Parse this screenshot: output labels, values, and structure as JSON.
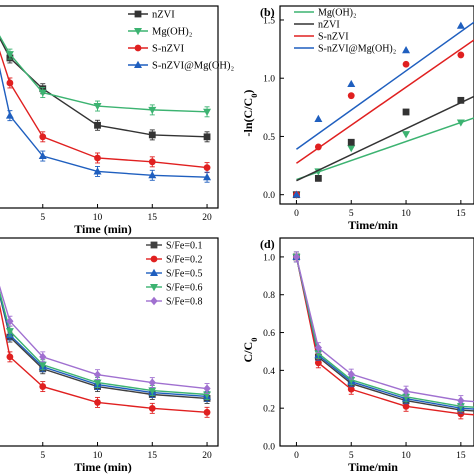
{
  "chart_data": [
    {
      "panel": "a",
      "panel_label": "",
      "type": "line",
      "x": [
        0,
        2,
        5,
        10,
        15,
        20
      ],
      "xticks": [
        "5",
        "10",
        "15",
        "20"
      ],
      "xlabel": "Time (min)",
      "ylabel": "",
      "xlim": [
        0,
        21
      ],
      "ylim": [
        0,
        1.05
      ],
      "yticks": [],
      "legend": "top-right",
      "series": [
        {
          "name": "nZVI",
          "color": "#333333",
          "marker": "square",
          "values": [
            1.0,
            0.78,
            0.62,
            0.43,
            0.38,
            0.37
          ]
        },
        {
          "name": "Mg(OH)₂",
          "color": "#3cb371",
          "marker": "triangle-down",
          "values": [
            1.0,
            0.8,
            0.6,
            0.53,
            0.51,
            0.5
          ]
        },
        {
          "name": "S-nZVI",
          "color": "#e02020",
          "marker": "circle",
          "values": [
            1.0,
            0.65,
            0.37,
            0.26,
            0.24,
            0.21
          ]
        },
        {
          "name": "S-nZVI@Mg(OH)₂",
          "color": "#1f5fbf",
          "marker": "triangle-up",
          "values": [
            1.0,
            0.48,
            0.27,
            0.19,
            0.17,
            0.16
          ]
        }
      ]
    },
    {
      "panel": "b",
      "panel_label": "(b)",
      "type": "scatter",
      "x": [
        0,
        2,
        5,
        10,
        15
      ],
      "xticks": [
        "0",
        "5",
        "10",
        "15"
      ],
      "yticks": [
        "0.0",
        "0.5",
        "1.0",
        "1.5"
      ],
      "xlabel": "Time/min",
      "ylabel": "-ln(C/C0)",
      "xlim": [
        -1.5,
        16.2
      ],
      "ylim": [
        -0.08,
        1.62
      ],
      "legend": "top-left",
      "series": [
        {
          "name": "Mg(OH)₂",
          "color": "#3cb371",
          "marker": "triangle-down",
          "values": [
            0.0,
            0.2,
            0.4,
            0.52,
            0.62
          ],
          "fit": [
            0.13,
            0.62
          ]
        },
        {
          "name": "nZVI",
          "color": "#333333",
          "marker": "square",
          "values": [
            0.0,
            0.14,
            0.45,
            0.71,
            0.81
          ],
          "fit": [
            0.12,
            0.79
          ]
        },
        {
          "name": "S-nZVI",
          "color": "#e02020",
          "marker": "circle",
          "values": [
            0.0,
            0.41,
            0.85,
            1.12,
            1.2
          ],
          "fit": [
            0.27,
            1.25
          ]
        },
        {
          "name": "S-nZVI@Mg(OH)₂",
          "color": "#1f5fbf",
          "marker": "triangle-up",
          "values": [
            0.0,
            0.65,
            0.95,
            1.24,
            1.45
          ],
          "fit": [
            0.39,
            1.4
          ]
        }
      ]
    },
    {
      "panel": "c",
      "panel_label": "",
      "type": "line",
      "x": [
        0,
        2,
        5,
        10,
        15,
        20
      ],
      "xticks": [
        "5",
        "10",
        "15",
        "20"
      ],
      "xlabel": "Time (min)",
      "ylabel": "",
      "xlim": [
        0,
        21
      ],
      "ylim": [
        0,
        1.05
      ],
      "yticks": [],
      "legend": "top-right",
      "series": [
        {
          "name": "S/Fe=0.1",
          "color": "#404040",
          "marker": "square",
          "values": [
            1.0,
            0.55,
            0.39,
            0.3,
            0.26,
            0.24
          ]
        },
        {
          "name": "S/Fe=0.2",
          "color": "#e02020",
          "marker": "circle",
          "values": [
            1.0,
            0.45,
            0.3,
            0.22,
            0.19,
            0.17
          ]
        },
        {
          "name": "S/Fe=0.5",
          "color": "#1f5fbf",
          "marker": "triangle-up",
          "values": [
            1.0,
            0.56,
            0.4,
            0.31,
            0.27,
            0.25
          ]
        },
        {
          "name": "S/Fe=0.6",
          "color": "#3cb371",
          "marker": "triangle-down",
          "values": [
            1.0,
            0.58,
            0.41,
            0.32,
            0.28,
            0.26
          ]
        },
        {
          "name": "S/Fe=0.8",
          "color": "#a070d0",
          "marker": "diamond",
          "values": [
            1.0,
            0.63,
            0.45,
            0.36,
            0.32,
            0.29
          ]
        }
      ]
    },
    {
      "panel": "d",
      "panel_label": "(d)",
      "type": "line",
      "x": [
        0,
        2,
        5,
        10,
        15,
        20
      ],
      "xticks": [
        "0",
        "5",
        "10",
        "15"
      ],
      "yticks": [
        "0.0",
        "0.2",
        "0.4",
        "0.6",
        "0.8",
        "1.0"
      ],
      "xlabel": "Time/min",
      "ylabel": "C/C0",
      "xlim": [
        -1.5,
        16.2
      ],
      "ylim": [
        0,
        1.1
      ],
      "legend": "none",
      "series": [
        {
          "color": "#404040",
          "marker": "square",
          "values": [
            1.0,
            0.47,
            0.33,
            0.24,
            0.19,
            0.17
          ]
        },
        {
          "color": "#e02020",
          "marker": "circle",
          "values": [
            1.0,
            0.44,
            0.3,
            0.21,
            0.17,
            0.15
          ]
        },
        {
          "color": "#1f5fbf",
          "marker": "triangle-up",
          "values": [
            1.0,
            0.48,
            0.34,
            0.25,
            0.2,
            0.18
          ]
        },
        {
          "color": "#3cb371",
          "marker": "triangle-down",
          "values": [
            1.0,
            0.49,
            0.35,
            0.26,
            0.21,
            0.19
          ]
        },
        {
          "color": "#a070d0",
          "marker": "diamond",
          "values": [
            1.0,
            0.52,
            0.38,
            0.29,
            0.24,
            0.22
          ]
        }
      ]
    }
  ]
}
